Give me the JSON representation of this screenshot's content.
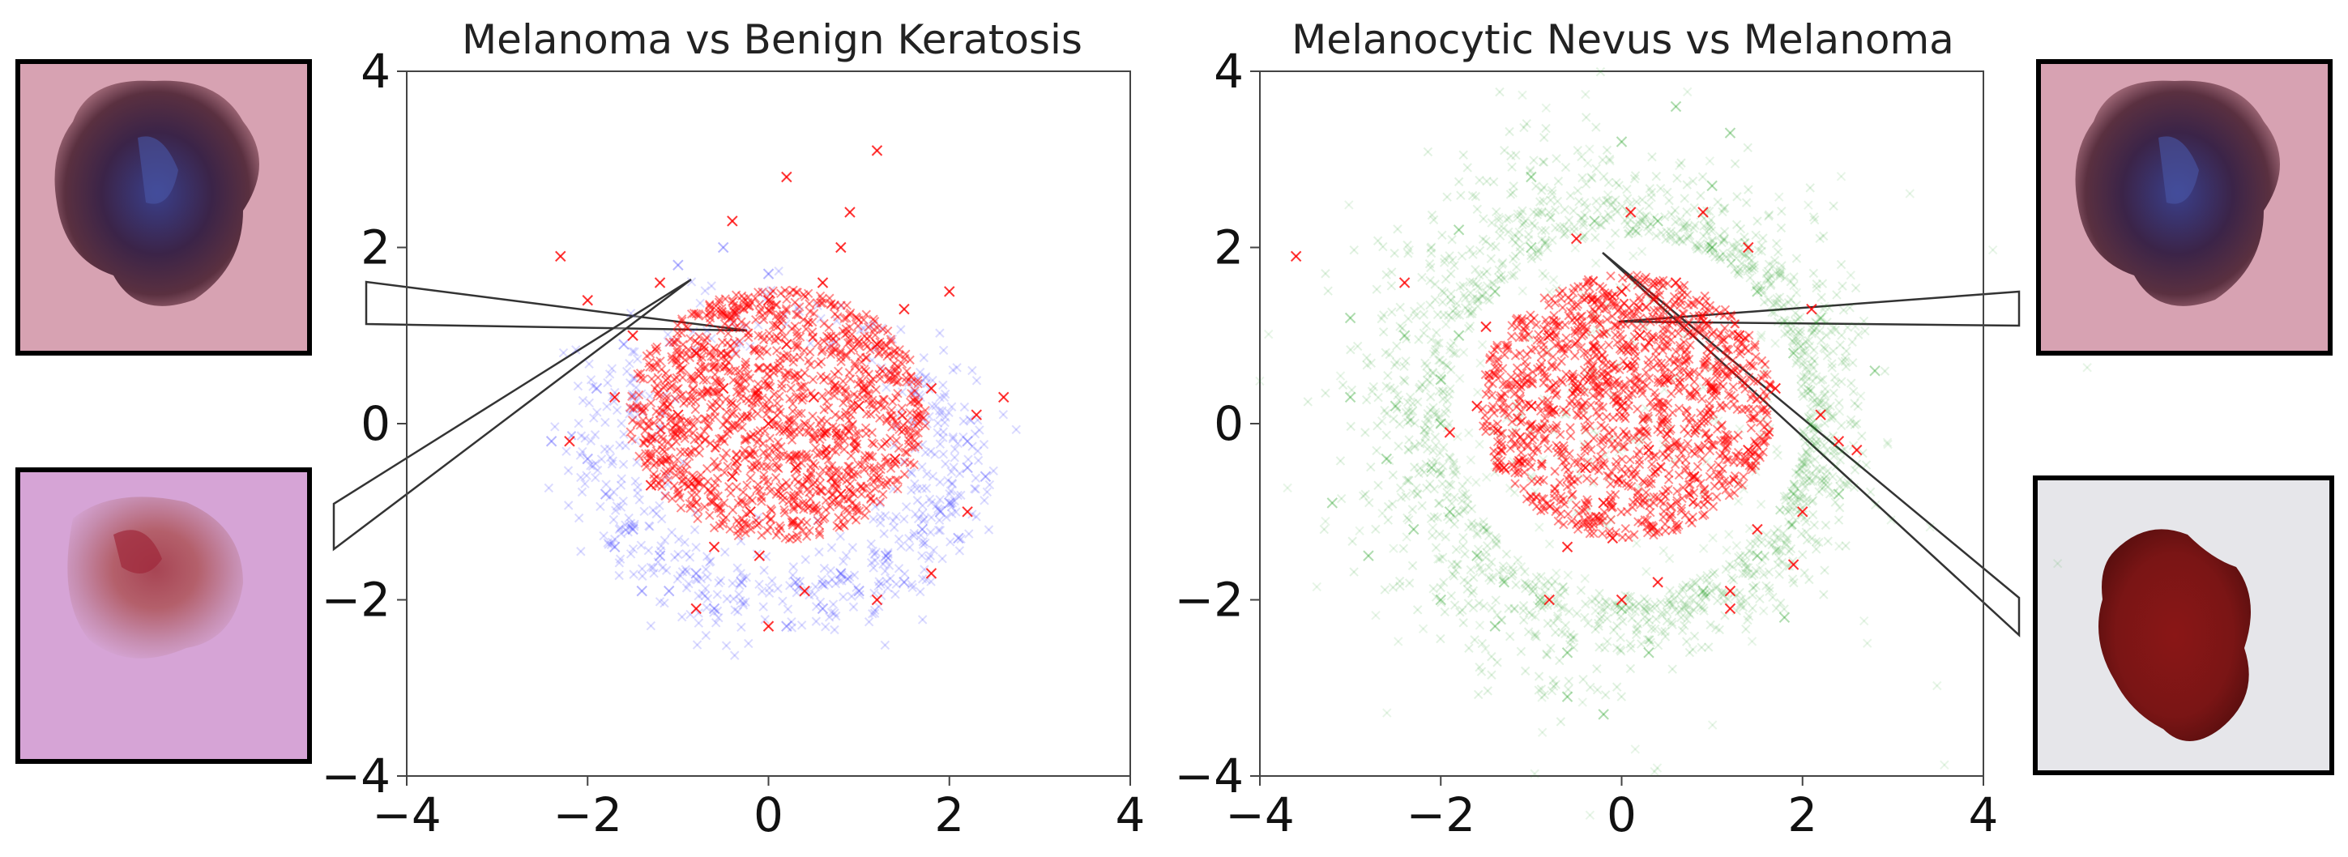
{
  "chart_data": [
    {
      "type": "scatter",
      "title": "Melanoma vs Benign Keratosis",
      "xlabel": "",
      "ylabel": "",
      "xlim": [
        -4,
        4
      ],
      "ylim": [
        -4,
        4
      ],
      "xticks": [
        "−4",
        "−2",
        "0",
        "2",
        "4"
      ],
      "yticks": [
        "−4",
        "−2",
        "0",
        "2",
        "4"
      ],
      "grid": false,
      "series": [
        {
          "marker": "x",
          "color": "#4a4aff",
          "opacity": 0.2,
          "distribution": "crescent ring below and around the central cluster",
          "points": [
            [
              -1.5,
              -1.2
            ],
            [
              -1.2,
              -1.5
            ],
            [
              -0.8,
              -1.7
            ],
            [
              -0.3,
              -1.8
            ],
            [
              0.3,
              -1.8
            ],
            [
              0.8,
              -1.7
            ],
            [
              1.3,
              -1.5
            ],
            [
              1.7,
              -1.2
            ],
            [
              2.0,
              -0.9
            ],
            [
              2.2,
              -0.5
            ],
            [
              2.2,
              -0.2
            ],
            [
              -1.8,
              -0.8
            ],
            [
              -2.0,
              -0.4
            ],
            [
              -1.9,
              0.4
            ],
            [
              -1.6,
              0.9
            ],
            [
              -1.0,
              1.8
            ],
            [
              -0.5,
              2.0
            ],
            [
              0.0,
              1.7
            ],
            [
              -1.4,
              -1.9
            ],
            [
              -0.6,
              -2.1
            ],
            [
              0.6,
              -2.1
            ],
            [
              1.5,
              -1.8
            ],
            [
              2.1,
              -1.3
            ],
            [
              1.9,
              -1.0
            ],
            [
              -1.7,
              -1.4
            ],
            [
              -1.1,
              -1.9
            ],
            [
              1.0,
              -1.9
            ],
            [
              -2.4,
              -0.2
            ],
            [
              2.4,
              -0.6
            ],
            [
              0.2,
              -2.3
            ]
          ]
        },
        {
          "marker": "x",
          "color": "#ff0000",
          "opacity": 0.6,
          "distribution": "dense disc centered near (0, 0)",
          "points": [
            [
              0.0,
              0.0
            ],
            [
              0.5,
              0.3
            ],
            [
              -0.5,
              0.4
            ],
            [
              0.3,
              -0.5
            ],
            [
              -0.4,
              -0.6
            ],
            [
              1.0,
              0.2
            ],
            [
              -1.0,
              0.1
            ],
            [
              0.2,
              0.9
            ],
            [
              -0.2,
              -1.0
            ],
            [
              0.8,
              -0.8
            ],
            [
              -0.8,
              0.8
            ],
            [
              1.2,
              0.9
            ],
            [
              -1.3,
              -0.7
            ],
            [
              1.4,
              -0.4
            ],
            [
              0.0,
              1.4
            ],
            [
              -0.1,
              -1.5
            ],
            [
              1.5,
              1.3
            ],
            [
              -1.5,
              1.0
            ],
            [
              0.6,
              1.6
            ],
            [
              -0.6,
              -1.4
            ],
            [
              1.8,
              0.4
            ],
            [
              -1.7,
              0.3
            ],
            [
              0.9,
              2.4
            ],
            [
              1.2,
              3.1
            ],
            [
              0.2,
              2.8
            ],
            [
              -0.4,
              2.3
            ],
            [
              1.8,
              -1.7
            ],
            [
              2.3,
              0.1
            ],
            [
              2.6,
              0.3
            ],
            [
              -2.3,
              1.9
            ],
            [
              -2.0,
              1.4
            ],
            [
              0.0,
              -2.3
            ],
            [
              -0.8,
              -2.1
            ],
            [
              1.2,
              -2.0
            ],
            [
              2.0,
              1.5
            ],
            [
              -1.2,
              1.6
            ],
            [
              0.4,
              -1.9
            ],
            [
              -2.2,
              -0.2
            ],
            [
              2.2,
              -1.0
            ],
            [
              0.8,
              2.0
            ]
          ]
        }
      ]
    },
    {
      "type": "scatter",
      "title": "Melanocytic Nevus vs Melanoma",
      "xlabel": "",
      "ylabel": "",
      "xlim": [
        -4,
        4
      ],
      "ylim": [
        -4,
        4
      ],
      "xticks": [
        "−4",
        "−2",
        "0",
        "2",
        "4"
      ],
      "yticks": [
        "−4",
        "−2",
        "0",
        "2",
        "4"
      ],
      "grid": false,
      "series": [
        {
          "marker": "x",
          "color": "#1e9e1e",
          "opacity": 0.15,
          "distribution": "broad ring around the central cluster, dense on the left",
          "points": [
            [
              -2.0,
              0.0
            ],
            [
              -2.1,
              -0.5
            ],
            [
              -2.0,
              0.5
            ],
            [
              -1.8,
              1.0
            ],
            [
              -1.9,
              -1.0
            ],
            [
              -1.6,
              -1.5
            ],
            [
              -1.4,
              1.5
            ],
            [
              -1.0,
              2.0
            ],
            [
              -0.3,
              2.3
            ],
            [
              0.4,
              2.3
            ],
            [
              1.0,
              2.0
            ],
            [
              1.5,
              1.5
            ],
            [
              1.9,
              0.8
            ],
            [
              2.1,
              0.0
            ],
            [
              1.9,
              -0.8
            ],
            [
              1.5,
              -1.5
            ],
            [
              0.9,
              -1.9
            ],
            [
              0.0,
              -2.1
            ],
            [
              -0.9,
              -2.0
            ],
            [
              -1.3,
              -1.8
            ],
            [
              -2.5,
              0.2
            ],
            [
              -2.6,
              -0.4
            ],
            [
              -2.4,
              1.0
            ],
            [
              -2.3,
              -1.2
            ],
            [
              -3.0,
              0.3
            ],
            [
              -2.8,
              -1.5
            ],
            [
              -1.8,
              2.2
            ],
            [
              -1.0,
              2.8
            ],
            [
              0.0,
              3.2
            ],
            [
              0.6,
              3.6
            ],
            [
              1.2,
              3.3
            ],
            [
              1.0,
              2.7
            ],
            [
              2.2,
              1.2
            ],
            [
              2.4,
              -0.8
            ],
            [
              1.8,
              -2.2
            ],
            [
              0.3,
              -2.6
            ],
            [
              -0.6,
              -2.6
            ],
            [
              -1.4,
              -2.3
            ],
            [
              -2.0,
              -2.0
            ],
            [
              -3.2,
              -0.9
            ],
            [
              -0.2,
              -3.3
            ],
            [
              -0.6,
              -3.1
            ],
            [
              2.8,
              0.6
            ],
            [
              -3.0,
              1.2
            ]
          ]
        },
        {
          "marker": "x",
          "color": "#ff0000",
          "opacity": 0.6,
          "distribution": "dense disc centered near (0, 0.2)",
          "points": [
            [
              0.0,
              0.2
            ],
            [
              0.5,
              0.5
            ],
            [
              -0.5,
              0.4
            ],
            [
              0.3,
              -0.3
            ],
            [
              -0.4,
              -0.5
            ],
            [
              1.0,
              0.4
            ],
            [
              -1.0,
              0.2
            ],
            [
              0.2,
              1.0
            ],
            [
              -0.2,
              -0.9
            ],
            [
              0.8,
              -0.6
            ],
            [
              -0.8,
              1.0
            ],
            [
              1.3,
              1.0
            ],
            [
              -1.3,
              -0.5
            ],
            [
              1.4,
              -0.3
            ],
            [
              0.0,
              1.5
            ],
            [
              -0.1,
              -1.3
            ],
            [
              1.5,
              -1.2
            ],
            [
              -1.5,
              1.1
            ],
            [
              0.6,
              1.6
            ],
            [
              -0.6,
              -1.4
            ],
            [
              1.7,
              0.4
            ],
            [
              -1.6,
              0.2
            ],
            [
              0.9,
              2.4
            ],
            [
              0.1,
              2.4
            ],
            [
              -0.5,
              2.1
            ],
            [
              1.9,
              -1.6
            ],
            [
              2.2,
              0.1
            ],
            [
              2.4,
              -0.2
            ],
            [
              2.6,
              -0.3
            ],
            [
              -2.4,
              1.6
            ],
            [
              -3.6,
              1.9
            ],
            [
              0.0,
              -2.0
            ],
            [
              -0.8,
              -2.0
            ],
            [
              1.2,
              -1.9
            ],
            [
              2.1,
              1.3
            ],
            [
              1.4,
              2.0
            ],
            [
              0.4,
              -1.8
            ],
            [
              -1.9,
              -0.1
            ],
            [
              2.0,
              -1.0
            ],
            [
              1.2,
              -2.1
            ]
          ]
        }
      ]
    }
  ],
  "thumbnails": [
    {
      "label": "",
      "kind": "melanoma-lesion"
    },
    {
      "label": "",
      "kind": "benign-keratosis-lesion"
    },
    {
      "label": "",
      "kind": "melanoma-lesion"
    },
    {
      "label": "",
      "kind": "nevus-lesion"
    }
  ]
}
